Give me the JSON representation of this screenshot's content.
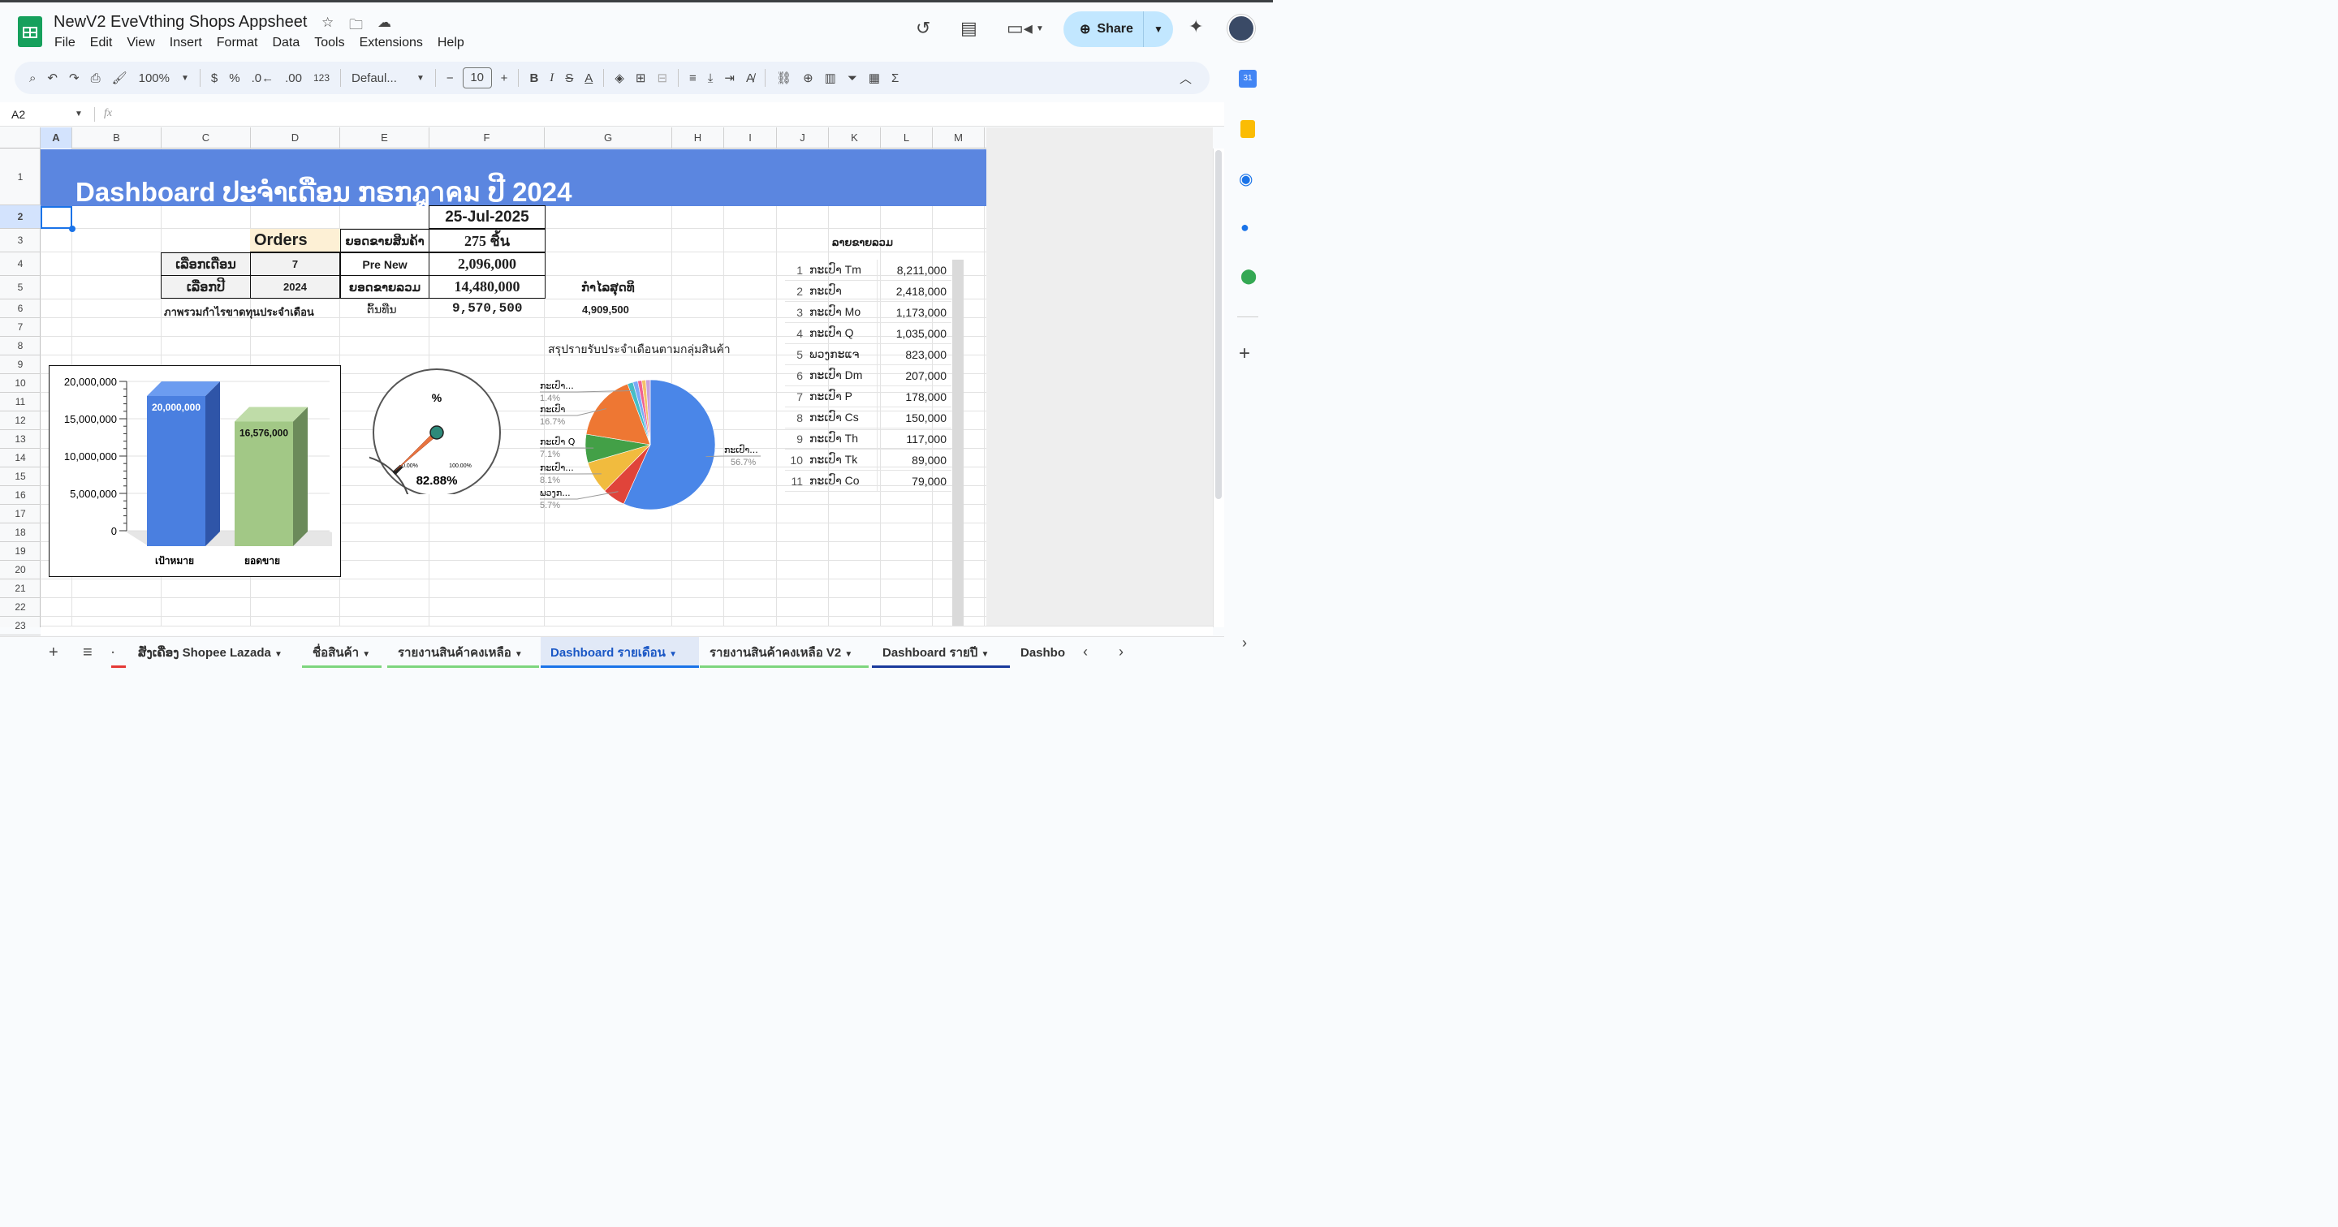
{
  "app": {
    "title": "NewV2 EveVthing Shops Appsheet",
    "menu": [
      "File",
      "Edit",
      "View",
      "Insert",
      "Format",
      "Data",
      "Tools",
      "Extensions",
      "Help"
    ],
    "share_label": "Share"
  },
  "toolbar": {
    "zoom": "100%",
    "currency": "$",
    "percent": "%",
    "dec_down": ".0←",
    "dec_up": ".00",
    "number_fmt": "123",
    "font": "Defaul...",
    "font_size": "10"
  },
  "formula": {
    "cell_ref": "A2",
    "fx": "fx",
    "value": ""
  },
  "columns": [
    "A",
    "B",
    "C",
    "D",
    "E",
    "F",
    "G",
    "H",
    "I",
    "J",
    "K",
    "L",
    "M"
  ],
  "rows": [
    "1",
    "2",
    "3",
    "4",
    "5",
    "6",
    "7",
    "8",
    "9",
    "10",
    "11",
    "12",
    "13",
    "14",
    "15",
    "16",
    "17",
    "18",
    "19",
    "20",
    "21",
    "22",
    "23"
  ],
  "sheet": {
    "banner": "Dashboard ປະຈຳເດືອນ ກຣກฎาคม ປີ 2024",
    "date": "25-Jul-2025",
    "orders_label": "Orders",
    "sales_qty_label": "ຍອດຂາຍສິນຄ້າ",
    "sales_qty_value": "275 ชิ้น",
    "select_month_label": "ເລືອກເດືອນ",
    "select_month_value": "7",
    "pre_new_label": "Pre New",
    "pre_new_value": "2,096,000",
    "select_year_label": "ເລືອກປີ",
    "select_year_value": "2024",
    "total_sales_label": "ຍອດຂາຍລວມ",
    "total_sales_value": "14,480,000",
    "profit_label": "ກຳໄລສຸດທິ",
    "profit_value": "4,909,500",
    "overview_label": "ภาพรวมกำไรขาดทุนประจำเดือน",
    "cost_label": "ຕົ້ນທືນ",
    "cost_value": "9,570,500",
    "pie_title": "สรุปรายรับประจำเดือนตามกลุ่มสินค้า",
    "rank_title": "ລາຍຂາຍລວມ",
    "gauge_symbol": "%",
    "gauge_min": "0.00%",
    "gauge_max": "100.00%",
    "gauge_value": "82.88%"
  },
  "ranking": [
    {
      "n": "1",
      "name": "ກະເປົາ Tm",
      "value": "8,211,000"
    },
    {
      "n": "2",
      "name": "ກະເປົາ",
      "value": "2,418,000"
    },
    {
      "n": "3",
      "name": "ກະເປົາ Mo",
      "value": "1,173,000"
    },
    {
      "n": "4",
      "name": "ກະເປົາ Q",
      "value": "1,035,000"
    },
    {
      "n": "5",
      "name": "ພວງກະແຈ",
      "value": "823,000"
    },
    {
      "n": "6",
      "name": "ກະເປົາ Dm",
      "value": "207,000"
    },
    {
      "n": "7",
      "name": "ກະເປົາ P",
      "value": "178,000"
    },
    {
      "n": "8",
      "name": "ກະເປົາ Cs",
      "value": "150,000"
    },
    {
      "n": "9",
      "name": "ກະເປົາ Th",
      "value": "117,000"
    },
    {
      "n": "10",
      "name": "ກະເປົາ Tk",
      "value": "89,000"
    },
    {
      "n": "11",
      "name": "ກະເປົາ Co",
      "value": "79,000"
    }
  ],
  "tabs": [
    "ສັ່ງເຄື່ອງ Shopee Lazada",
    "ชื่อสินค้า",
    "รายงานสินค้าคงเหลือ",
    "Dashboard รายเดือน",
    "รายงานสินค้าคงเหลือ V2",
    "Dashboard รายปี",
    "Dashbo"
  ],
  "chart_data": [
    {
      "type": "bar",
      "title": "",
      "categories": [
        "เป้าหมาย",
        "ยอดขาย"
      ],
      "values": [
        20000000,
        16576000
      ],
      "value_labels": [
        "20,000,000",
        "16,576,000"
      ],
      "ylim": [
        0,
        20000000
      ],
      "yticks": [
        "20,000,000",
        "15,000,000",
        "10,000,000",
        "5,000,000",
        "0"
      ],
      "colors": [
        "#4a7fe0",
        "#a2c886"
      ]
    },
    {
      "type": "gauge",
      "value": 82.88,
      "min": 0,
      "max": 100,
      "label": "82.88%"
    },
    {
      "type": "pie",
      "title": "สรุปรายรับประจำเดือนตามกลุ่มสินค้า",
      "slices": [
        {
          "label": "ກະເປົາ...",
          "value": 56.7,
          "pct": "56.7%",
          "color": "#4a86e8"
        },
        {
          "label": "ພວງກ...",
          "value": 5.7,
          "pct": "5.7%",
          "color": "#e0443a"
        },
        {
          "label": "ກະເປົາ...",
          "value": 8.1,
          "pct": "8.1%",
          "color": "#f1bb3e"
        },
        {
          "label": "ກະເປົາ Q",
          "value": 7.1,
          "pct": "7.1%",
          "color": "#43a047"
        },
        {
          "label": "ກະເປົາ",
          "value": 16.7,
          "pct": "16.7%",
          "color": "#ee7733"
        },
        {
          "label": "ກະເປົາ...",
          "value": 1.4,
          "pct": "1.4%",
          "color": "#46bdc6"
        },
        {
          "label": "",
          "value": 1.2,
          "pct": "",
          "color": "#7baaf7"
        },
        {
          "label": "",
          "value": 1.0,
          "pct": "",
          "color": "#f06292"
        },
        {
          "label": "",
          "value": 1.0,
          "pct": "",
          "color": "#f5c16a"
        },
        {
          "label": "",
          "value": 1.1,
          "pct": "",
          "color": "#c9a0dc"
        }
      ]
    }
  ]
}
